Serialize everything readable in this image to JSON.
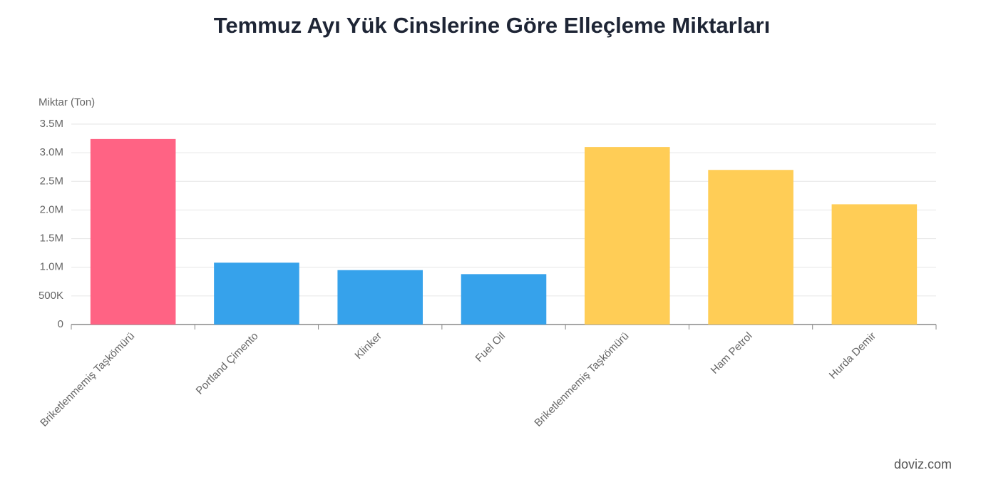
{
  "chart_data": {
    "type": "bar",
    "title": "Temmuz Ayı Yük Cinslerine Göre Elleçleme Miktarları",
    "y_label": "Miktar (Ton)",
    "categories": [
      "Briketlenmemiş Taşkömürü",
      "Portland Çimento",
      "Klinker",
      "Fuel Oil",
      "Briketlenmemiş Taşkömürü",
      "Ham Petrol",
      "Hurda Demir"
    ],
    "values": [
      3240000,
      1080000,
      950000,
      880000,
      3100000,
      2700000,
      2100000
    ],
    "colors": [
      "#ff6384",
      "#36a2eb",
      "#36a2eb",
      "#36a2eb",
      "#ffcd56",
      "#ffcd56",
      "#ffcd56"
    ],
    "ylim": [
      0,
      3500000
    ],
    "yticks": [
      0,
      {
        "value": 500000,
        "label": "500K"
      },
      {
        "value": 1000000,
        "label": "1.0M"
      },
      {
        "value": 1500000,
        "label": "1.5M"
      },
      {
        "value": 2000000,
        "label": "2.0M"
      },
      {
        "value": 2500000,
        "label": "2.5M"
      },
      {
        "value": 3000000,
        "label": "3.0M"
      },
      {
        "value": 3500000,
        "label": "3.5M"
      }
    ],
    "grid": true
  },
  "footer": "doviz.com"
}
